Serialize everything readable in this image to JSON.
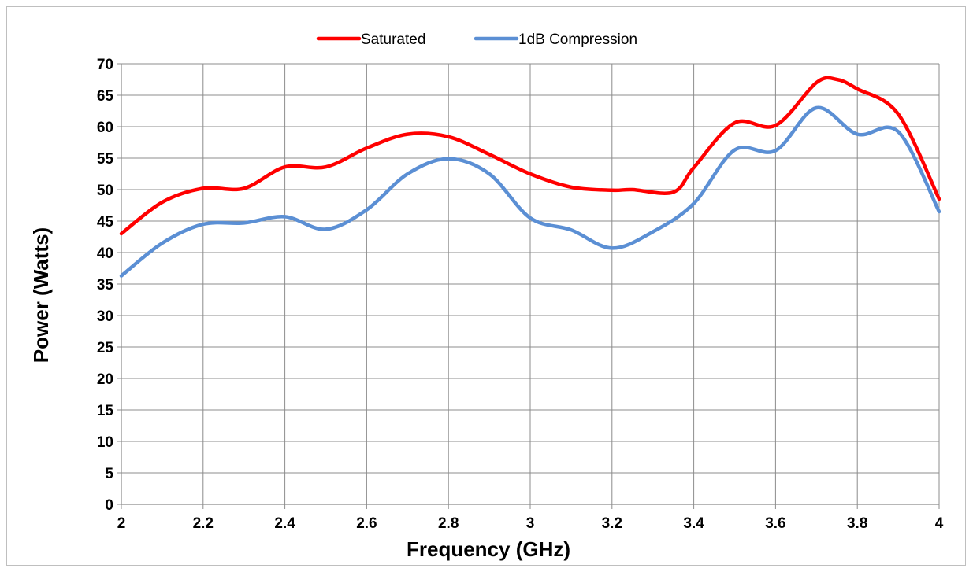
{
  "chart_data": {
    "type": "line",
    "title": "",
    "xlabel": "Frequency (GHz)",
    "ylabel": "Power (Watts)",
    "xlim": [
      2,
      4
    ],
    "ylim": [
      0,
      70
    ],
    "x_ticks": [
      "2",
      "2.2",
      "2.4",
      "2.6",
      "2.8",
      "3",
      "3.2",
      "3.4",
      "3.6",
      "3.8",
      "4"
    ],
    "y_ticks": [
      "0",
      "5",
      "10",
      "15",
      "20",
      "25",
      "30",
      "35",
      "40",
      "45",
      "50",
      "55",
      "60",
      "65",
      "70"
    ],
    "grid": true,
    "smooth": true,
    "legend_position": "top",
    "series": [
      {
        "name": "Saturated",
        "color": "#ff0000",
        "x": [
          2.0,
          2.1,
          2.2,
          2.3,
          2.4,
          2.5,
          2.6,
          2.7,
          2.8,
          2.9,
          3.0,
          3.1,
          3.2,
          3.25,
          3.35,
          3.4,
          3.5,
          3.6,
          3.7,
          3.75,
          3.8,
          3.9,
          4.0
        ],
        "y": [
          43,
          48,
          50.2,
          50.2,
          53.6,
          53.6,
          56.6,
          58.8,
          58.4,
          55.6,
          52.5,
          50.4,
          49.9,
          50,
          49.6,
          53.5,
          60.6,
          60.2,
          67,
          67.5,
          66,
          62,
          48.5
        ]
      },
      {
        "name": "1dB Compression",
        "color": "#5b8fd4",
        "x": [
          2.0,
          2.1,
          2.2,
          2.3,
          2.4,
          2.5,
          2.6,
          2.7,
          2.8,
          2.9,
          3.0,
          3.1,
          3.2,
          3.3,
          3.4,
          3.5,
          3.6,
          3.7,
          3.8,
          3.9,
          4.0
        ],
        "y": [
          36.3,
          41.5,
          44.5,
          44.7,
          45.7,
          43.7,
          46.8,
          52.5,
          54.9,
          52.5,
          45.5,
          43.6,
          40.7,
          43.3,
          47.8,
          56.3,
          56.2,
          63,
          58.8,
          59.2,
          46.5
        ]
      }
    ]
  }
}
